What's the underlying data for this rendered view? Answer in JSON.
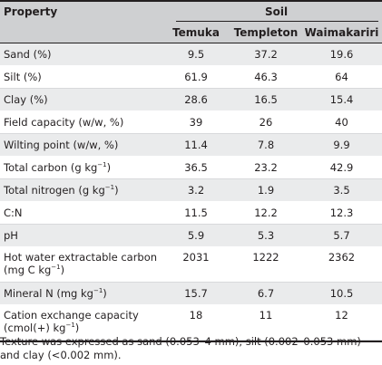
{
  "header": {
    "property": "Property",
    "soil": "Soil",
    "columns": [
      "Temuka",
      "Templeton",
      "Waimakariri"
    ]
  },
  "rows": [
    {
      "label": "Sand (%)",
      "values": [
        "9.5",
        "37.2",
        "19.6"
      ]
    },
    {
      "label": "Silt (%)",
      "values": [
        "61.9",
        "46.3",
        "64"
      ]
    },
    {
      "label": "Clay (%)",
      "values": [
        "28.6",
        "16.5",
        "15.4"
      ]
    },
    {
      "label": "Field capacity (w/w, %)",
      "values": [
        "39",
        "26",
        "40"
      ]
    },
    {
      "label": "Wilting point (w/w, %)",
      "values": [
        "11.4",
        "7.8",
        "9.9"
      ]
    },
    {
      "label": "Total carbon (g kg",
      "label_sup": "−1",
      "label_end": ")",
      "values": [
        "36.5",
        "23.2",
        "42.9"
      ]
    },
    {
      "label": "Total nitrogen (g kg",
      "label_sup": "−1",
      "label_end": ")",
      "values": [
        "3.2",
        "1.9",
        "3.5"
      ]
    },
    {
      "label": "C:N",
      "values": [
        "11.5",
        "12.2",
        "12.3"
      ]
    },
    {
      "label": "pH",
      "values": [
        "5.9",
        "5.3",
        "5.7"
      ]
    },
    {
      "label": "Hot water extractable carbon",
      "label_line2": "(mg C kg",
      "label_line2_sup": "−1",
      "label_line2_end": ")",
      "values": [
        "2031",
        "1222",
        "2362"
      ]
    },
    {
      "label": "Mineral N (mg kg",
      "label_sup": "−1",
      "label_end": ")",
      "values": [
        "15.7",
        "6.7",
        "10.5"
      ]
    },
    {
      "label": "Cation exchange capacity",
      "label_line2": "(cmol(+) kg",
      "label_line2_sup": "−1",
      "label_line2_end": ")",
      "values": [
        "18",
        "11",
        "12"
      ]
    }
  ],
  "footnote": "Texture was expressed as sand (0.053–4 mm), silt (0.002–0.053 mm) and clay (<0.002 mm)."
}
